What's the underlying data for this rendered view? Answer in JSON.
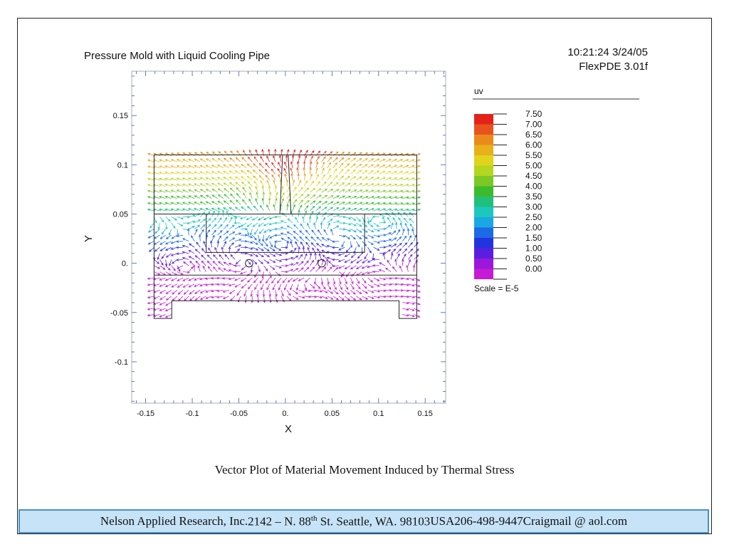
{
  "header": {
    "title": "Pressure Mold with Liquid Cooling Pipe",
    "timestamp": "10:21:24 3/24/05",
    "software": "FlexPDE 3.01f"
  },
  "caption": "Vector Plot of Material Movement Induced by Thermal Stress",
  "footer": {
    "company": "Nelson Applied Research, Inc.",
    "address_part1": "2142 – N. 88",
    "address_sup": "th",
    "address_part2": " St. Seattle, WA. 98103",
    "country": "USA",
    "phone": "206-498-9447",
    "email": "Craigmail @ aol.com"
  },
  "chart_data": {
    "type": "vector",
    "title": "Pressure Mold with Liquid Cooling Pipe",
    "xlabel": "X",
    "ylabel": "Y",
    "xlim": [
      -0.165,
      0.172
    ],
    "ylim": [
      -0.142,
      0.195
    ],
    "xticks": [
      -0.15,
      -0.1,
      -0.05,
      0.0,
      0.05,
      0.1,
      0.15
    ],
    "xtick_labels": [
      "-0.15",
      "-0.1",
      "-0.05",
      "0.",
      "0.05",
      "0.1",
      "0.15"
    ],
    "yticks": [
      0.15,
      0.1,
      0.05,
      0.0,
      -0.05,
      -0.1
    ],
    "ytick_labels": [
      "0.15",
      "0.1",
      "0.05",
      "0.",
      "-0.05",
      "-0.1"
    ],
    "variable": "uv",
    "scale_note": "Scale = E-5",
    "legend": [
      {
        "value": "7.50",
        "color": "#e3221a"
      },
      {
        "value": "7.00",
        "color": "#e8521e"
      },
      {
        "value": "6.50",
        "color": "#ea8a1c"
      },
      {
        "value": "6.00",
        "color": "#e8b01a"
      },
      {
        "value": "5.50",
        "color": "#e0d41c"
      },
      {
        "value": "5.00",
        "color": "#b4d61e"
      },
      {
        "value": "4.50",
        "color": "#7cc824"
      },
      {
        "value": "4.00",
        "color": "#3cbc2c"
      },
      {
        "value": "3.50",
        "color": "#20c07a"
      },
      {
        "value": "3.00",
        "color": "#1cc8be"
      },
      {
        "value": "2.50",
        "color": "#1aa8e4"
      },
      {
        "value": "2.00",
        "color": "#1c6ae6"
      },
      {
        "value": "1.50",
        "color": "#2234e0"
      },
      {
        "value": "1.00",
        "color": "#5a1ee0"
      },
      {
        "value": "0.50",
        "color": "#9a18dc"
      },
      {
        "value": "0.00",
        "color": "#c81ad6"
      }
    ],
    "geometry": {
      "outer_upper": [
        [
          -0.141,
          0.05
        ],
        [
          0.141,
          0.05
        ],
        [
          0.141,
          0.11
        ],
        [
          -0.141,
          0.11
        ]
      ],
      "inner_rect": [
        [
          -0.085,
          0.011
        ],
        [
          0.085,
          0.011
        ],
        [
          0.085,
          0.05
        ],
        [
          -0.085,
          0.05
        ]
      ],
      "sprue": [
        [
          -0.006,
          0.05
        ],
        [
          0.006,
          0.05
        ],
        [
          0.003,
          0.11
        ],
        [
          -0.003,
          0.11
        ]
      ],
      "lower_body": [
        [
          -0.141,
          0.05
        ],
        [
          0.141,
          0.05
        ],
        [
          0.141,
          -0.056
        ],
        [
          0.122,
          -0.056
        ],
        [
          0.122,
          -0.038
        ],
        [
          -0.122,
          -0.038
        ],
        [
          -0.122,
          -0.056
        ],
        [
          -0.141,
          -0.056
        ]
      ],
      "divider_y": -0.012,
      "pipes": [
        {
          "cx": -0.039,
          "cy": 0.0,
          "r": 0.004
        },
        {
          "cx": 0.039,
          "cy": 0.0,
          "r": 0.004
        }
      ]
    }
  }
}
